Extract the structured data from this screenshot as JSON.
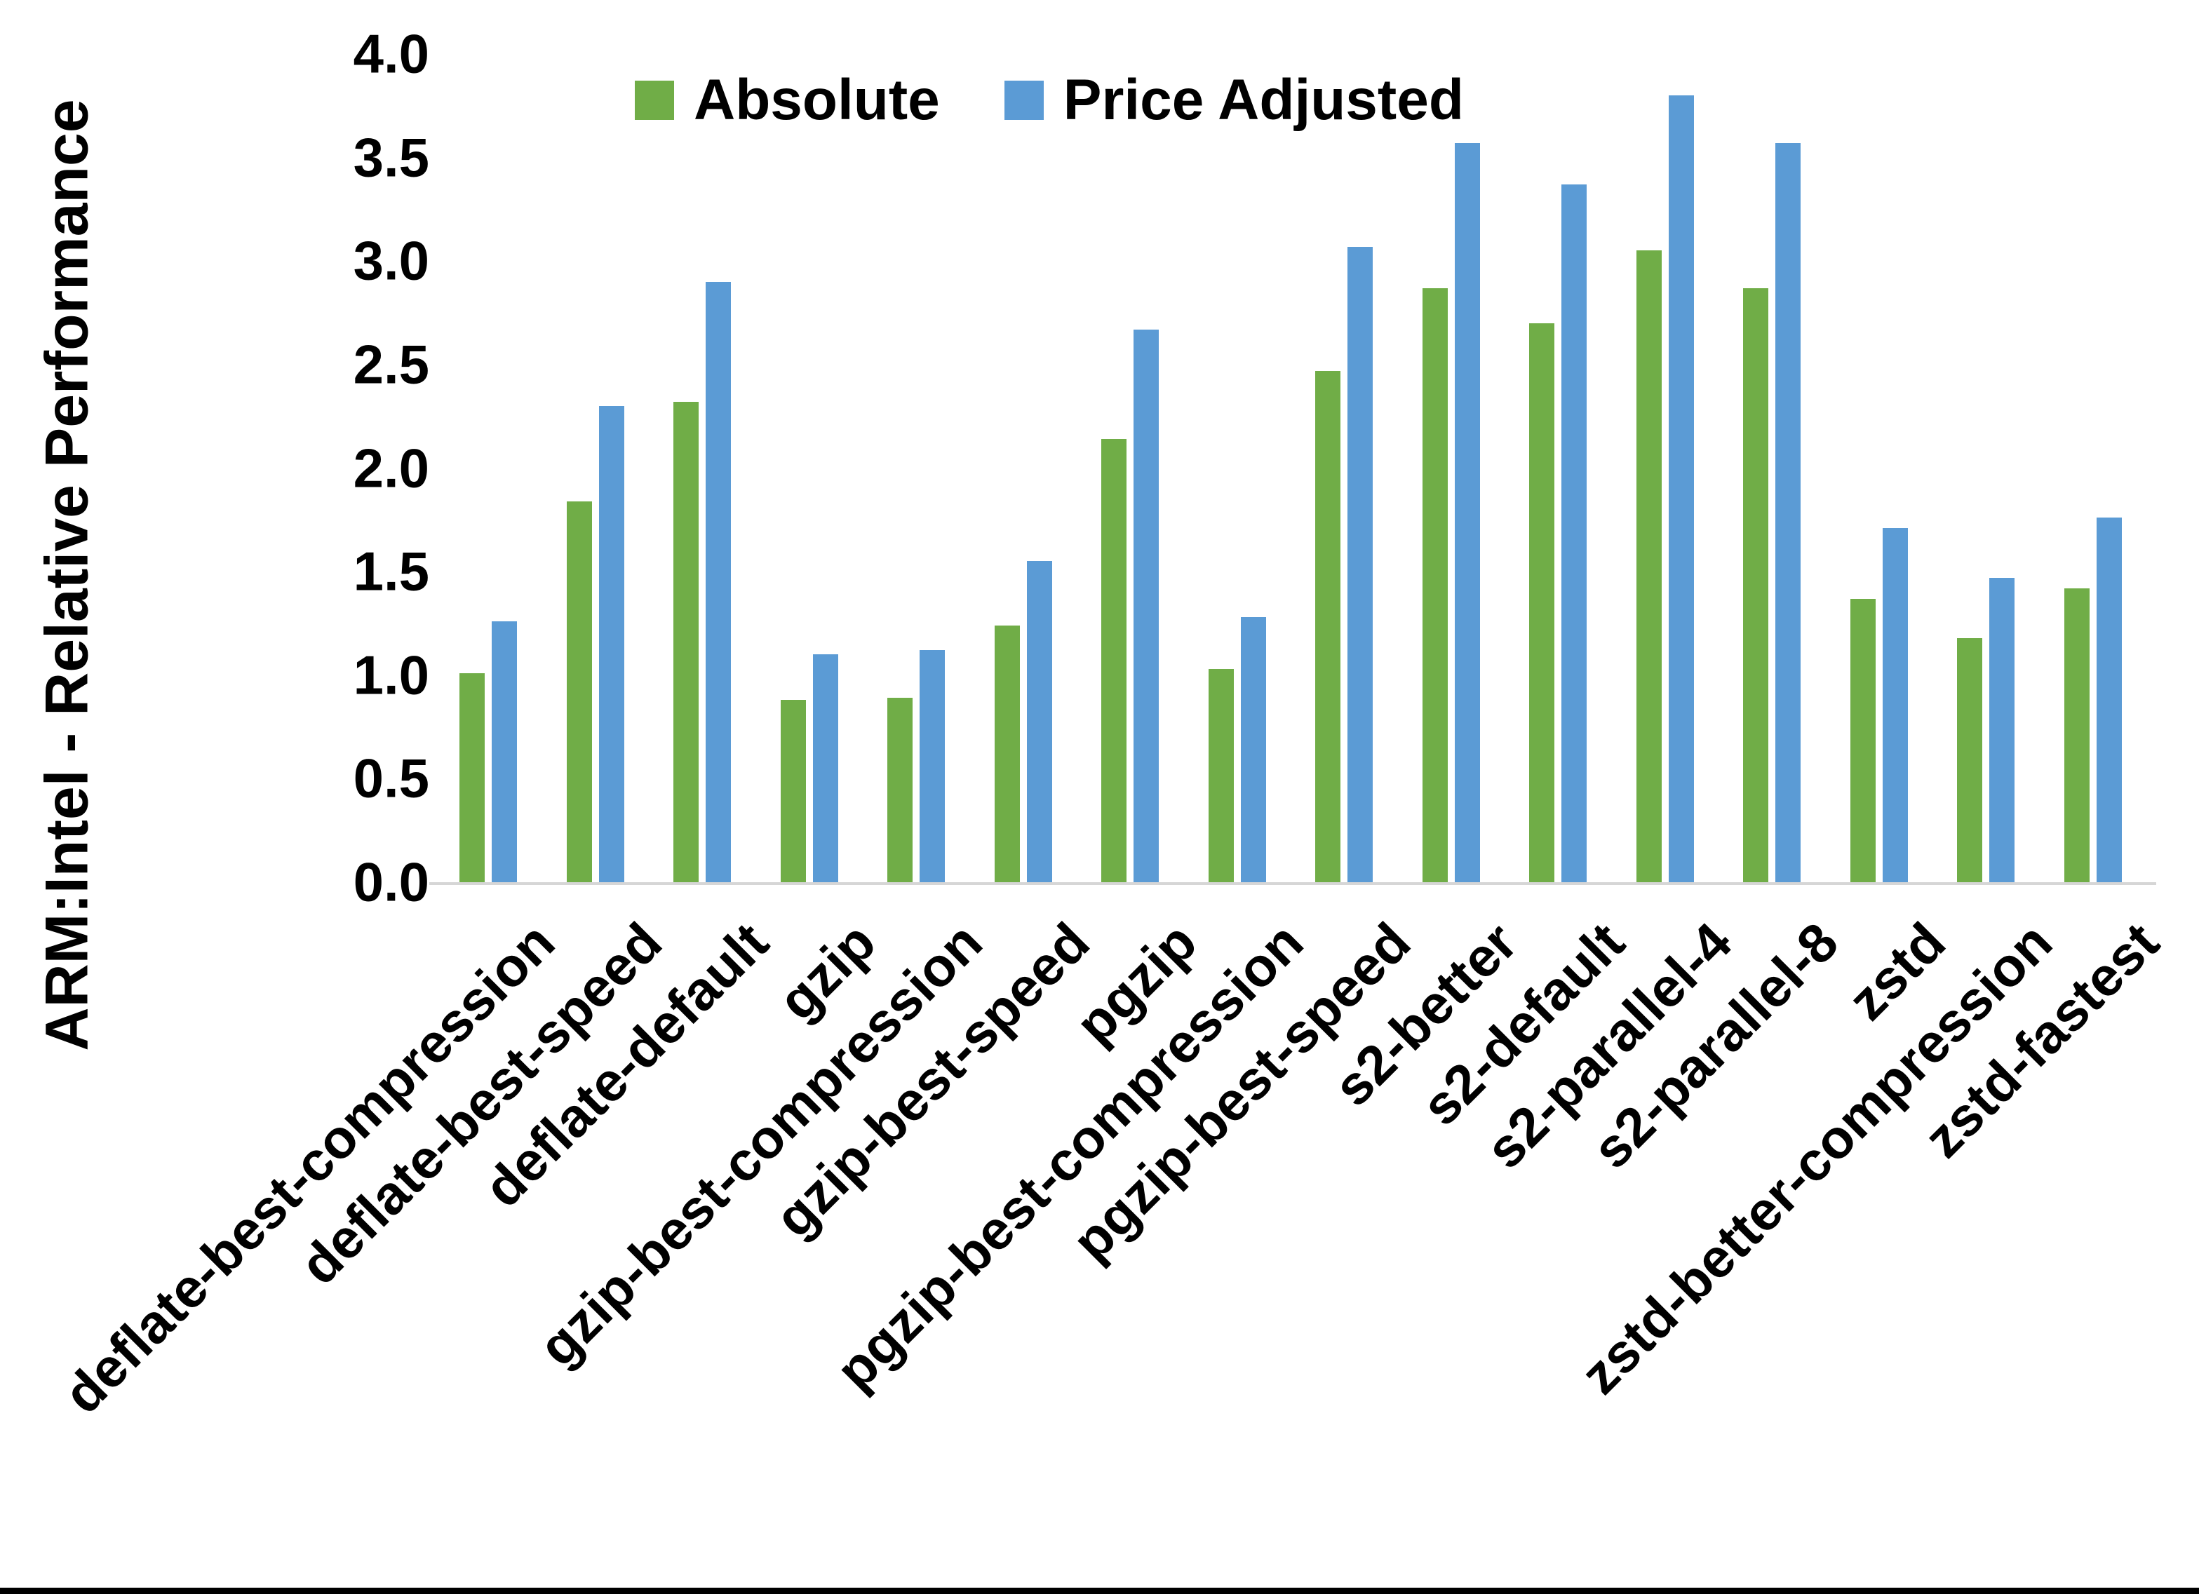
{
  "chart_data": {
    "type": "bar",
    "title": "",
    "xlabel": "",
    "ylabel": "ARM:Intel - Relative Performance",
    "ylim": [
      0.0,
      4.0
    ],
    "ytick_step": 0.5,
    "yticks": [
      "4.0",
      "3.5",
      "3.0",
      "2.5",
      "2.0",
      "1.5",
      "1.0",
      "0.5",
      "0.0"
    ],
    "grid": "off",
    "legend_position": "top-center",
    "axis_line_color": "#d6d6d6",
    "categories": [
      "deflate-best-compression",
      "deflate-best-speed",
      "deflate-default",
      "gzip",
      "gzip-best-compression",
      "gzip-best-speed",
      "pgzip",
      "pgzip-best-compression",
      "pgzip-best-speed",
      "s2-better",
      "s2-default",
      "s2-parallel-4",
      "s2-parallel-8",
      "zstd",
      "zstd-better-compression",
      "zstd-fastest"
    ],
    "series": [
      {
        "name": "Absolute",
        "color": "#70AD47",
        "values": [
          1.01,
          1.84,
          2.32,
          0.88,
          0.89,
          1.24,
          2.14,
          1.03,
          2.47,
          2.87,
          2.7,
          3.05,
          2.87,
          1.37,
          1.18,
          1.42
        ]
      },
      {
        "name": "Price Adjusted",
        "color": "#5B9BD5",
        "values": [
          1.26,
          2.3,
          2.9,
          1.1,
          1.12,
          1.55,
          2.67,
          1.28,
          3.07,
          3.57,
          3.37,
          3.8,
          3.57,
          1.71,
          1.47,
          1.76
        ]
      }
    ]
  }
}
